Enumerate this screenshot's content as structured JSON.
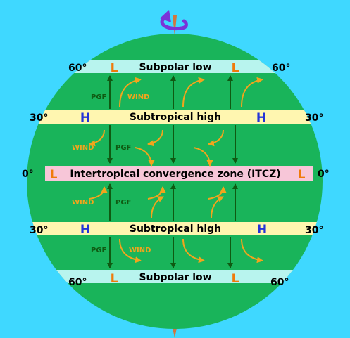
{
  "colors": {
    "background": "#3fd8ff",
    "globe": "#19b45a",
    "polar_band": "#b8f4ee",
    "subtropical_band": "#fff6b0",
    "itcz_band": "#f7c6d8",
    "pgf_arrow": "#0f5a12",
    "wind_arrow": "#f2a51c",
    "pressure_H": "#2433d8",
    "pressure_L": "#f07a0a",
    "axis": "#d0763e",
    "rotation_arrow": "#7a33d8"
  },
  "bands": {
    "north_subpolar": {
      "label": "Subpolar low",
      "lat_left": "60°",
      "lat_right": "60°",
      "marker_left": "L",
      "marker_right": "L"
    },
    "north_subtropical": {
      "label": "Subtropical high",
      "lat_left": "30°",
      "lat_right": "30°",
      "marker_left": "H",
      "marker_right": "H"
    },
    "equator": {
      "label": "Intertropical convergence zone (ITCZ)",
      "lat_left": "0°",
      "lat_right": "0°",
      "marker_left": "L",
      "marker_right": "L"
    },
    "south_subtropical": {
      "label": "Subtropical high",
      "lat_left": "30°",
      "lat_right": "30°",
      "marker_left": "H",
      "marker_right": "H"
    },
    "south_subpolar": {
      "label": "Subpolar low",
      "lat_left": "60°",
      "lat_right": "60°",
      "marker_left": "L",
      "marker_right": "L"
    }
  },
  "labels": {
    "pgf": "PGF",
    "wind": "WIND"
  },
  "icons": {
    "rotation": "rotation-arrow-icon",
    "pgf": "straight-arrow-icon",
    "wind": "curved-arrow-icon"
  }
}
